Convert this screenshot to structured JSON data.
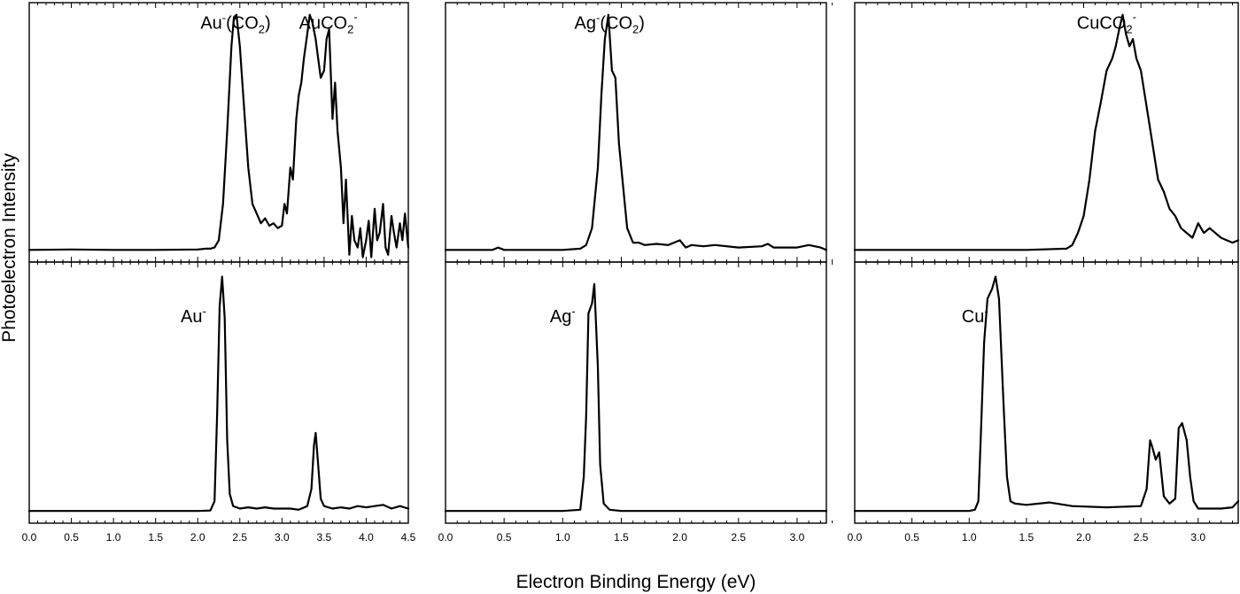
{
  "chart_data": {
    "type": "line",
    "xlabel": "Electron Binding Energy (eV)",
    "ylabel": "Photoelectron Intensity",
    "grid": false,
    "legend": "none",
    "line_color": "#000000",
    "panels": [
      {
        "column": 1,
        "xlim": [
          0,
          4.5
        ],
        "xticks": [
          "0.0",
          "0.5",
          "1.0",
          "1.5",
          "2.0",
          "2.5",
          "3.0",
          "3.5",
          "4.0",
          "4.5"
        ],
        "top": {
          "ylim": [
            -0.04,
            1.03
          ],
          "labels": [
            {
              "base": "Au",
              "sup": "-",
              "rest": "(CO",
              "sub": "2",
              "end": ")",
              "x": 2.45,
              "y": 1.01
            },
            {
              "base": "AuCO",
              "sub": "2",
              "sup": "-",
              "x": 3.55,
              "y": 1.01
            }
          ],
          "x": [
            0,
            0.5,
            1.0,
            1.5,
            2.0,
            2.1,
            2.15,
            2.2,
            2.25,
            2.3,
            2.35,
            2.4,
            2.43,
            2.46,
            2.5,
            2.55,
            2.6,
            2.65,
            2.7,
            2.75,
            2.8,
            2.85,
            2.9,
            2.95,
            3.0,
            3.03,
            3.06,
            3.1,
            3.13,
            3.17,
            3.2,
            3.23,
            3.26,
            3.3,
            3.33,
            3.36,
            3.4,
            3.43,
            3.46,
            3.5,
            3.53,
            3.56,
            3.6,
            3.63,
            3.66,
            3.7,
            3.73,
            3.76,
            3.8,
            3.83,
            3.86,
            3.9,
            3.93,
            3.96,
            4.0,
            4.03,
            4.06,
            4.1,
            4.13,
            4.16,
            4.2,
            4.23,
            4.26,
            4.3,
            4.33,
            4.36,
            4.4,
            4.43,
            4.46,
            4.5
          ],
          "y": [
            0.01,
            0.012,
            0.01,
            0.01,
            0.012,
            0.015,
            0.015,
            0.02,
            0.05,
            0.2,
            0.5,
            0.85,
            0.97,
            0.98,
            0.85,
            0.6,
            0.35,
            0.2,
            0.16,
            0.12,
            0.14,
            0.11,
            0.12,
            0.1,
            0.11,
            0.2,
            0.16,
            0.35,
            0.3,
            0.55,
            0.65,
            0.7,
            0.8,
            0.9,
            0.98,
            0.95,
            0.88,
            0.8,
            0.72,
            0.75,
            0.88,
            0.92,
            0.55,
            0.7,
            0.5,
            0.35,
            0.12,
            0.3,
            -0.01,
            0.15,
            0.05,
            0.02,
            0.1,
            -0.02,
            0.05,
            0.13,
            -0.02,
            0.18,
            0.05,
            0.08,
            0.2,
            0.02,
            -0.01,
            0.15,
            0.08,
            0.02,
            0.12,
            0.05,
            0.16,
            0.02
          ]
        },
        "bottom": {
          "ylim": [
            -0.04,
            1.03
          ],
          "labels": [
            {
              "base": "Au",
              "sup": "-",
              "x": 1.95,
              "y": 0.87
            }
          ],
          "x": [
            0,
            0.5,
            1.0,
            1.5,
            2.0,
            2.15,
            2.2,
            2.23,
            2.26,
            2.29,
            2.32,
            2.35,
            2.38,
            2.42,
            2.5,
            2.6,
            2.7,
            2.8,
            2.9,
            3.0,
            3.1,
            3.2,
            3.3,
            3.35,
            3.38,
            3.4,
            3.43,
            3.46,
            3.5,
            3.6,
            3.7,
            3.8,
            3.9,
            4.0,
            4.1,
            4.2,
            4.3,
            4.4,
            4.5
          ],
          "y": [
            0.01,
            0.01,
            0.01,
            0.01,
            0.01,
            0.012,
            0.05,
            0.4,
            0.85,
            0.97,
            0.8,
            0.3,
            0.08,
            0.03,
            0.02,
            0.025,
            0.02,
            0.025,
            0.02,
            0.02,
            0.02,
            0.015,
            0.03,
            0.1,
            0.28,
            0.33,
            0.2,
            0.06,
            0.03,
            0.02,
            0.025,
            0.02,
            0.03,
            0.025,
            0.03,
            0.035,
            0.02,
            0.03,
            0.02
          ]
        }
      },
      {
        "column": 2,
        "xlim": [
          0,
          3.25
        ],
        "xticks": [
          "0.0",
          "0.5",
          "1.0",
          "1.5",
          "2.0",
          "2.5",
          "3.0"
        ],
        "top": {
          "ylim": [
            -0.04,
            1.03
          ],
          "labels": [
            {
              "base": "Ag",
              "sup": "-",
              "rest": "(CO",
              "sub": "2",
              "end": ")",
              "x": 1.4,
              "y": 1.01
            }
          ],
          "x": [
            0,
            0.4,
            0.45,
            0.5,
            1.0,
            1.15,
            1.2,
            1.25,
            1.3,
            1.33,
            1.36,
            1.39,
            1.42,
            1.45,
            1.48,
            1.52,
            1.55,
            1.6,
            1.65,
            1.7,
            1.8,
            1.9,
            2.0,
            2.05,
            2.1,
            2.2,
            2.3,
            2.5,
            2.7,
            2.75,
            2.8,
            3.0,
            3.1,
            3.2,
            3.25
          ],
          "y": [
            0.01,
            0.01,
            0.02,
            0.01,
            0.01,
            0.015,
            0.03,
            0.1,
            0.35,
            0.65,
            0.88,
            0.98,
            0.75,
            0.72,
            0.45,
            0.25,
            0.1,
            0.04,
            0.04,
            0.03,
            0.035,
            0.03,
            0.05,
            0.02,
            0.03,
            0.025,
            0.03,
            0.02,
            0.025,
            0.035,
            0.02,
            0.02,
            0.03,
            0.02,
            0.01
          ]
        },
        "bottom": {
          "ylim": [
            -0.04,
            1.03
          ],
          "labels": [
            {
              "base": "Ag",
              "sup": "-",
              "x": 1.0,
              "y": 0.87
            }
          ],
          "x": [
            0,
            0.5,
            1.0,
            1.15,
            1.18,
            1.2,
            1.22,
            1.25,
            1.27,
            1.3,
            1.32,
            1.35,
            1.4,
            1.5,
            2.0,
            2.5,
            3.0,
            3.25
          ],
          "y": [
            0.01,
            0.01,
            0.01,
            0.015,
            0.15,
            0.4,
            0.82,
            0.86,
            0.94,
            0.6,
            0.2,
            0.04,
            0.015,
            0.01,
            0.01,
            0.01,
            0.01,
            0.01
          ]
        }
      },
      {
        "column": 3,
        "xlim": [
          0,
          3.35
        ],
        "xticks": [
          "0.0",
          "0.5",
          "1.0",
          "1.5",
          "2.0",
          "2.5",
          "3.0"
        ],
        "top": {
          "ylim": [
            -0.04,
            1.03
          ],
          "labels": [
            {
              "base": "CuCO",
              "sub": "2",
              "sup": "-",
              "x": 2.2,
              "y": 1.01
            }
          ],
          "x": [
            0,
            0.5,
            1.0,
            1.5,
            1.85,
            1.9,
            1.95,
            2.0,
            2.05,
            2.1,
            2.15,
            2.2,
            2.25,
            2.28,
            2.31,
            2.34,
            2.37,
            2.4,
            2.43,
            2.46,
            2.5,
            2.55,
            2.6,
            2.65,
            2.7,
            2.75,
            2.8,
            2.85,
            2.9,
            2.95,
            3.0,
            3.05,
            3.1,
            3.2,
            3.3,
            3.35
          ],
          "y": [
            0.01,
            0.01,
            0.01,
            0.01,
            0.015,
            0.03,
            0.08,
            0.15,
            0.3,
            0.5,
            0.62,
            0.75,
            0.8,
            0.85,
            0.92,
            0.98,
            0.9,
            0.85,
            0.88,
            0.8,
            0.75,
            0.6,
            0.45,
            0.3,
            0.25,
            0.18,
            0.15,
            0.1,
            0.08,
            0.06,
            0.12,
            0.08,
            0.1,
            0.06,
            0.04,
            0.05
          ]
        },
        "bottom": {
          "ylim": [
            -0.04,
            1.03
          ],
          "labels": [
            {
              "base": "Cu",
              "sup": "-",
              "x": 1.05,
              "y": 0.87
            }
          ],
          "x": [
            0,
            0.5,
            1.0,
            1.05,
            1.08,
            1.1,
            1.13,
            1.16,
            1.2,
            1.23,
            1.26,
            1.3,
            1.33,
            1.36,
            1.4,
            1.5,
            1.7,
            1.9,
            2.2,
            2.5,
            2.55,
            2.58,
            2.6,
            2.63,
            2.66,
            2.7,
            2.75,
            2.8,
            2.83,
            2.86,
            2.9,
            2.93,
            2.96,
            3.0,
            3.1,
            3.2,
            3.3,
            3.35
          ],
          "y": [
            0.01,
            0.01,
            0.01,
            0.015,
            0.05,
            0.3,
            0.7,
            0.88,
            0.92,
            0.97,
            0.88,
            0.45,
            0.15,
            0.05,
            0.04,
            0.035,
            0.045,
            0.03,
            0.025,
            0.03,
            0.1,
            0.3,
            0.27,
            0.22,
            0.25,
            0.07,
            0.04,
            0.06,
            0.35,
            0.37,
            0.3,
            0.15,
            0.05,
            0.02,
            0.02,
            0.02,
            0.025,
            0.05
          ]
        }
      }
    ]
  }
}
